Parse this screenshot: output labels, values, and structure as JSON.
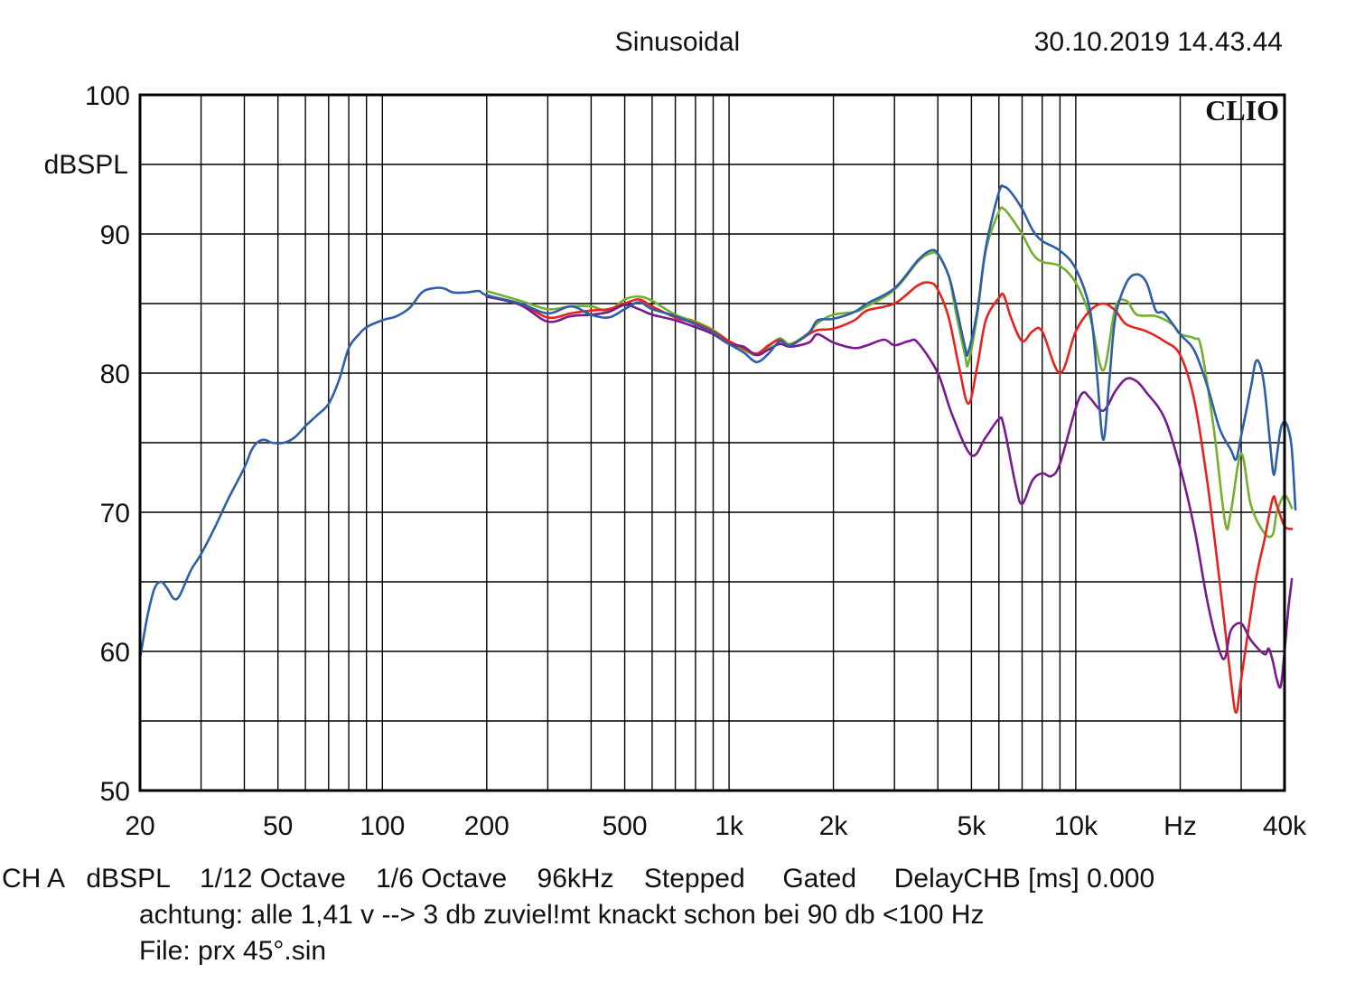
{
  "header": {
    "mode": "Sinusoidal",
    "timestamp": "30.10.2019 14.43.44",
    "brand": "CLIO"
  },
  "footer": {
    "line1": "CH A   dBSPL    1/12 Octave    1/6 Octave    96kHz    Stepped     Gated     DelayCHB [ms] 0.000",
    "line2": "achtung: alle 1,41 v --> 3 db zuviel!mt knackt schon bei 90 db <100 Hz",
    "line3": "File: prx 45°.sin"
  },
  "chart_data": {
    "type": "line",
    "x_scale": "log",
    "xlim": [
      20,
      40000
    ],
    "ylim": [
      50,
      100
    ],
    "ylabel": "dBSPL",
    "xlabel": "Hz",
    "grid": true,
    "x_ticks": [
      {
        "value": 20,
        "label": "20"
      },
      {
        "value": 50,
        "label": "50"
      },
      {
        "value": 100,
        "label": "100"
      },
      {
        "value": 200,
        "label": "200"
      },
      {
        "value": 500,
        "label": "500"
      },
      {
        "value": 1000,
        "label": "1k"
      },
      {
        "value": 2000,
        "label": "2k"
      },
      {
        "value": 5000,
        "label": "5k"
      },
      {
        "value": 10000,
        "label": "10k"
      },
      {
        "value": 20000,
        "label": "Hz"
      },
      {
        "value": 40000,
        "label": "40k"
      }
    ],
    "y_ticks": [
      {
        "value": 100,
        "label": "100"
      },
      {
        "value": 90,
        "label": "90"
      },
      {
        "value": 80,
        "label": "80"
      },
      {
        "value": 70,
        "label": "70"
      },
      {
        "value": 60,
        "label": "60"
      },
      {
        "value": 50,
        "label": "50"
      }
    ],
    "series": [
      {
        "color": "#73b032",
        "points": [
          [
            200,
            85.9
          ],
          [
            250,
            85.2
          ],
          [
            300,
            84.6
          ],
          [
            350,
            84.8
          ],
          [
            400,
            84.8
          ],
          [
            450,
            84.5
          ],
          [
            500,
            85.3
          ],
          [
            550,
            85.5
          ],
          [
            600,
            85.2
          ],
          [
            700,
            84.2
          ],
          [
            800,
            83.7
          ],
          [
            900,
            83.1
          ],
          [
            1000,
            82.3
          ],
          [
            1100,
            81.7
          ],
          [
            1200,
            81.3
          ],
          [
            1300,
            81.9
          ],
          [
            1400,
            82.5
          ],
          [
            1500,
            82.1
          ],
          [
            1700,
            82.9
          ],
          [
            1800,
            83.6
          ],
          [
            2000,
            84.2
          ],
          [
            2300,
            84.4
          ],
          [
            2500,
            84.8
          ],
          [
            3000,
            86.0
          ],
          [
            3500,
            88.0
          ],
          [
            3800,
            88.6
          ],
          [
            4000,
            88.5
          ],
          [
            4300,
            87.0
          ],
          [
            4500,
            84.5
          ],
          [
            4800,
            81.2
          ],
          [
            4900,
            80.7
          ],
          [
            5200,
            84.2
          ],
          [
            5500,
            88.8
          ],
          [
            6000,
            91.6
          ],
          [
            6200,
            91.8
          ],
          [
            6500,
            91.2
          ],
          [
            7000,
            90.0
          ],
          [
            7500,
            88.6
          ],
          [
            8000,
            88.0
          ],
          [
            9000,
            87.7
          ],
          [
            10000,
            86.5
          ],
          [
            11000,
            84.0
          ],
          [
            12000,
            80.2
          ],
          [
            13000,
            84.7
          ],
          [
            14000,
            85.2
          ],
          [
            15000,
            84.2
          ],
          [
            17000,
            84.1
          ],
          [
            19000,
            83.5
          ],
          [
            20000,
            82.8
          ],
          [
            22000,
            82.5
          ],
          [
            23000,
            81.8
          ],
          [
            25000,
            76.0
          ],
          [
            27000,
            69.2
          ],
          [
            28000,
            70.0
          ],
          [
            30000,
            74.2
          ],
          [
            32000,
            70.5
          ],
          [
            35000,
            68.5
          ],
          [
            37000,
            68.4
          ],
          [
            38000,
            70.0
          ],
          [
            40000,
            71.2
          ],
          [
            42000,
            70.3
          ]
        ]
      },
      {
        "color": "#e8221c",
        "points": [
          [
            200,
            85.5
          ],
          [
            250,
            85.0
          ],
          [
            300,
            84.0
          ],
          [
            350,
            84.3
          ],
          [
            400,
            84.5
          ],
          [
            450,
            84.6
          ],
          [
            500,
            85.0
          ],
          [
            550,
            85.3
          ],
          [
            600,
            84.8
          ],
          [
            700,
            84.0
          ],
          [
            800,
            83.6
          ],
          [
            900,
            83.0
          ],
          [
            1000,
            82.3
          ],
          [
            1100,
            81.8
          ],
          [
            1200,
            81.4
          ],
          [
            1300,
            82.0
          ],
          [
            1400,
            82.4
          ],
          [
            1500,
            82.0
          ],
          [
            1700,
            82.8
          ],
          [
            1800,
            83.1
          ],
          [
            2000,
            83.2
          ],
          [
            2300,
            83.8
          ],
          [
            2500,
            84.5
          ],
          [
            3000,
            85.0
          ],
          [
            3500,
            86.3
          ],
          [
            3800,
            86.5
          ],
          [
            4000,
            86.0
          ],
          [
            4300,
            84.0
          ],
          [
            4600,
            80.5
          ],
          [
            4900,
            77.8
          ],
          [
            5200,
            80.5
          ],
          [
            5500,
            83.8
          ],
          [
            6000,
            85.4
          ],
          [
            6200,
            85.6
          ],
          [
            6500,
            84.0
          ],
          [
            7000,
            82.3
          ],
          [
            7500,
            83.0
          ],
          [
            8000,
            83.0
          ],
          [
            9000,
            80.0
          ],
          [
            10000,
            83.0
          ],
          [
            11000,
            84.5
          ],
          [
            12000,
            85.0
          ],
          [
            13000,
            84.5
          ],
          [
            14000,
            83.5
          ],
          [
            16000,
            83.0
          ],
          [
            18000,
            82.3
          ],
          [
            20000,
            81.3
          ],
          [
            22000,
            78.0
          ],
          [
            24000,
            72.0
          ],
          [
            26000,
            65.0
          ],
          [
            28000,
            58.0
          ],
          [
            29000,
            55.6
          ],
          [
            30000,
            58.0
          ],
          [
            33000,
            65.0
          ],
          [
            35000,
            68.0
          ],
          [
            37000,
            71.0
          ],
          [
            38000,
            70.5
          ],
          [
            40000,
            69.0
          ],
          [
            42000,
            68.8
          ]
        ]
      },
      {
        "color": "#7a1a8f",
        "points": [
          [
            200,
            85.5
          ],
          [
            250,
            84.9
          ],
          [
            300,
            83.7
          ],
          [
            350,
            84.1
          ],
          [
            400,
            84.2
          ],
          [
            450,
            84.4
          ],
          [
            500,
            84.9
          ],
          [
            550,
            84.6
          ],
          [
            600,
            84.2
          ],
          [
            700,
            83.8
          ],
          [
            800,
            83.3
          ],
          [
            900,
            82.8
          ],
          [
            1000,
            82.1
          ],
          [
            1100,
            81.9
          ],
          [
            1200,
            81.3
          ],
          [
            1300,
            81.7
          ],
          [
            1400,
            82.1
          ],
          [
            1500,
            81.9
          ],
          [
            1700,
            82.2
          ],
          [
            1800,
            82.8
          ],
          [
            2000,
            82.2
          ],
          [
            2300,
            81.8
          ],
          [
            2500,
            82.0
          ],
          [
            2800,
            82.4
          ],
          [
            3000,
            82.0
          ],
          [
            3300,
            82.3
          ],
          [
            3500,
            82.2
          ],
          [
            4000,
            80.0
          ],
          [
            4400,
            77.0
          ],
          [
            5000,
            74.1
          ],
          [
            5500,
            75.4
          ],
          [
            6000,
            76.7
          ],
          [
            6200,
            76.2
          ],
          [
            6700,
            72.0
          ],
          [
            7000,
            70.6
          ],
          [
            7500,
            72.3
          ],
          [
            8000,
            72.8
          ],
          [
            8500,
            72.6
          ],
          [
            9000,
            73.5
          ],
          [
            10000,
            77.5
          ],
          [
            10500,
            78.6
          ],
          [
            11000,
            78.2
          ],
          [
            12000,
            77.3
          ],
          [
            13000,
            78.7
          ],
          [
            14000,
            79.6
          ],
          [
            15000,
            79.4
          ],
          [
            16000,
            78.6
          ],
          [
            18000,
            76.8
          ],
          [
            20000,
            73.2
          ],
          [
            22000,
            68.8
          ],
          [
            24000,
            63.5
          ],
          [
            26000,
            60.0
          ],
          [
            27000,
            59.6
          ],
          [
            28000,
            61.5
          ],
          [
            30000,
            62.0
          ],
          [
            32000,
            60.8
          ],
          [
            35000,
            59.8
          ],
          [
            36000,
            60.2
          ],
          [
            37000,
            59.3
          ],
          [
            38000,
            58.0
          ],
          [
            39000,
            57.5
          ],
          [
            40000,
            60.0
          ],
          [
            41000,
            63.0
          ],
          [
            42000,
            65.2
          ]
        ]
      },
      {
        "color": "#2e5ea8",
        "points": [
          [
            20,
            59.5
          ],
          [
            21,
            62.5
          ],
          [
            22,
            64.5
          ],
          [
            23,
            65.0
          ],
          [
            24,
            64.5
          ],
          [
            25,
            63.8
          ],
          [
            26,
            64.0
          ],
          [
            28,
            65.8
          ],
          [
            30,
            67.0
          ],
          [
            33,
            69.0
          ],
          [
            36,
            71.0
          ],
          [
            40,
            73.2
          ],
          [
            42,
            74.5
          ],
          [
            44,
            75.1
          ],
          [
            46,
            75.2
          ],
          [
            48,
            75.0
          ],
          [
            52,
            75.0
          ],
          [
            56,
            75.4
          ],
          [
            60,
            76.2
          ],
          [
            65,
            77.0
          ],
          [
            70,
            77.8
          ],
          [
            75,
            79.5
          ],
          [
            80,
            81.8
          ],
          [
            85,
            82.7
          ],
          [
            90,
            83.3
          ],
          [
            100,
            83.8
          ],
          [
            110,
            84.1
          ],
          [
            120,
            84.7
          ],
          [
            130,
            85.8
          ],
          [
            140,
            86.1
          ],
          [
            150,
            86.1
          ],
          [
            160,
            85.8
          ],
          [
            175,
            85.8
          ],
          [
            190,
            85.9
          ],
          [
            200,
            85.6
          ],
          [
            250,
            85.0
          ],
          [
            300,
            84.3
          ],
          [
            350,
            84.8
          ],
          [
            400,
            84.2
          ],
          [
            450,
            84.0
          ],
          [
            500,
            84.6
          ],
          [
            550,
            85.1
          ],
          [
            600,
            84.6
          ],
          [
            700,
            84.1
          ],
          [
            800,
            83.5
          ],
          [
            900,
            82.9
          ],
          [
            1000,
            82.1
          ],
          [
            1100,
            81.5
          ],
          [
            1200,
            80.8
          ],
          [
            1300,
            81.4
          ],
          [
            1400,
            82.3
          ],
          [
            1500,
            82.0
          ],
          [
            1700,
            82.9
          ],
          [
            1800,
            83.8
          ],
          [
            2000,
            83.9
          ],
          [
            2300,
            84.4
          ],
          [
            2500,
            85.0
          ],
          [
            3000,
            86.1
          ],
          [
            3500,
            88.1
          ],
          [
            3800,
            88.8
          ],
          [
            4000,
            88.6
          ],
          [
            4300,
            87.0
          ],
          [
            4500,
            85.0
          ],
          [
            4800,
            81.8
          ],
          [
            4900,
            81.5
          ],
          [
            5200,
            84.5
          ],
          [
            5500,
            89.0
          ],
          [
            6000,
            93.0
          ],
          [
            6200,
            93.4
          ],
          [
            6500,
            93.0
          ],
          [
            7000,
            91.8
          ],
          [
            7500,
            90.3
          ],
          [
            8000,
            89.5
          ],
          [
            9000,
            88.8
          ],
          [
            10000,
            87.5
          ],
          [
            11000,
            84.5
          ],
          [
            11500,
            80.0
          ],
          [
            12000,
            75.2
          ],
          [
            12500,
            79.5
          ],
          [
            13000,
            84.0
          ],
          [
            14000,
            86.5
          ],
          [
            15000,
            87.1
          ],
          [
            16000,
            86.5
          ],
          [
            17000,
            84.5
          ],
          [
            18000,
            84.3
          ],
          [
            20000,
            82.8
          ],
          [
            22000,
            81.6
          ],
          [
            24000,
            79.0
          ],
          [
            26000,
            76.0
          ],
          [
            28000,
            74.5
          ],
          [
            29000,
            73.8
          ],
          [
            30000,
            75.5
          ],
          [
            32000,
            79.0
          ],
          [
            33000,
            80.8
          ],
          [
            34000,
            80.6
          ],
          [
            35000,
            79.0
          ],
          [
            36000,
            76.0
          ],
          [
            37000,
            73.0
          ],
          [
            37500,
            72.9
          ],
          [
            38000,
            74.0
          ],
          [
            39000,
            76.0
          ],
          [
            40000,
            76.5
          ],
          [
            41000,
            76.0
          ],
          [
            42000,
            74.5
          ],
          [
            43000,
            70.2
          ]
        ]
      }
    ]
  }
}
